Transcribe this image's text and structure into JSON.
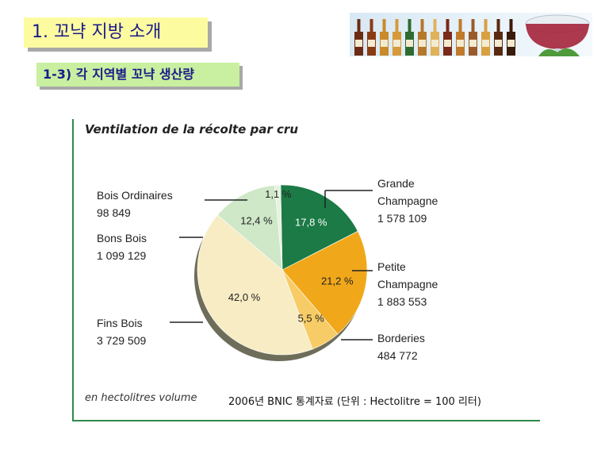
{
  "header": {
    "title": "1. 꼬냑 지방 소개",
    "subtitle": "1-3) 각 지역별 꼬냑 생산량"
  },
  "chart_data": {
    "type": "pie",
    "title": "Ventilation de la récolte par cru",
    "unit_note": "en hectolitres volume",
    "source_note": "2006년 BNIC 통계자료 (단위 : Hectolitre = 100 리터)",
    "slices": [
      {
        "name": "Grande Champagne",
        "value": "1 578 109",
        "percent": 17.8,
        "percent_label": "17,8 %",
        "color": "#1b7a45",
        "label_color": "#ffffff"
      },
      {
        "name": "Petite Champagne",
        "value": "1 883 553",
        "percent": 21.2,
        "percent_label": "21,2 %",
        "color": "#f0a81a",
        "label_color": "#222222"
      },
      {
        "name": "Borderies",
        "value": "484 772",
        "percent": 5.5,
        "percent_label": "5,5 %",
        "color": "#f7cc66",
        "label_color": "#222222"
      },
      {
        "name": "Fins Bois",
        "value": "3 729 509",
        "percent": 42.0,
        "percent_label": "42,0 %",
        "color": "#f7ecc4",
        "label_color": "#222222"
      },
      {
        "name": "Bons Bois",
        "value": "1 099 129",
        "percent": 12.4,
        "percent_label": "12,4 %",
        "color": "#cfe8c8",
        "label_color": "#222222"
      },
      {
        "name": "Bois Ordinaires",
        "value": "98 849",
        "percent": 1.1,
        "percent_label": "1,1 %",
        "color": "#e6f2df",
        "label_color": "#222222"
      }
    ],
    "colors": {
      "frame": "#2f8a4b",
      "shadow": "#6d6d5a"
    }
  }
}
